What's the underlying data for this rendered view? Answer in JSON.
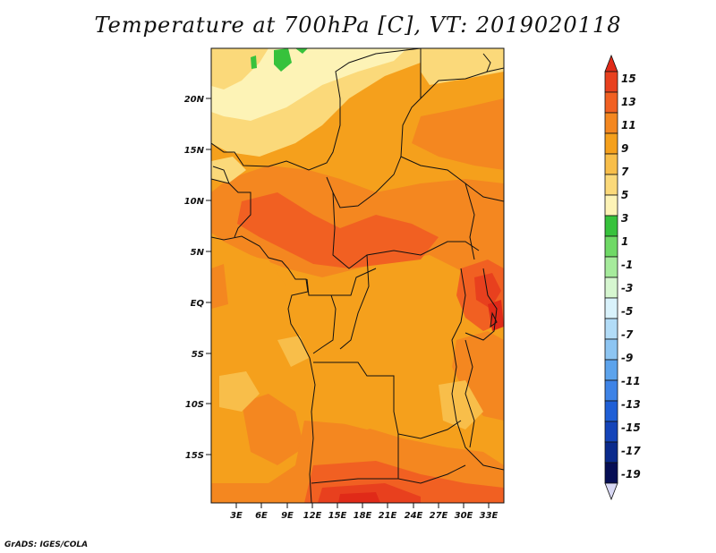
{
  "title": "Temperature at 700hPa [C], VT: 2019020118",
  "credit": "GrADS: IGES/COLA",
  "map": {
    "lat_ticks": [
      "20N",
      "15N",
      "10N",
      "5N",
      "EQ",
      "5S",
      "10S",
      "15S"
    ],
    "lon_ticks": [
      "3E",
      "6E",
      "9E",
      "12E",
      "15E",
      "18E",
      "21E",
      "24E",
      "27E",
      "30E",
      "33E"
    ]
  },
  "colorbar": {
    "labels": [
      "15",
      "13",
      "11",
      "9",
      "7",
      "5",
      "3",
      "1",
      "-1",
      "-3",
      "-5",
      "-7",
      "-9",
      "-11",
      "-13",
      "-15",
      "-17",
      "-19"
    ],
    "colors": [
      "#e8401e",
      "#f16022",
      "#f48720",
      "#f5a01c",
      "#f8be4a",
      "#fbd97a",
      "#fdf3b6",
      "#37c23c",
      "#6fd966",
      "#a6eb9c",
      "#d6f6d0",
      "#d9f2fb",
      "#b2dcf7",
      "#8dc5f2",
      "#5ca3ec",
      "#3e83e6",
      "#1f5fd6",
      "#1444b9",
      "#0a2a8c",
      "#060e55"
    ],
    "over_color": "#e02a18",
    "under_color": "#d8d8f4"
  }
}
